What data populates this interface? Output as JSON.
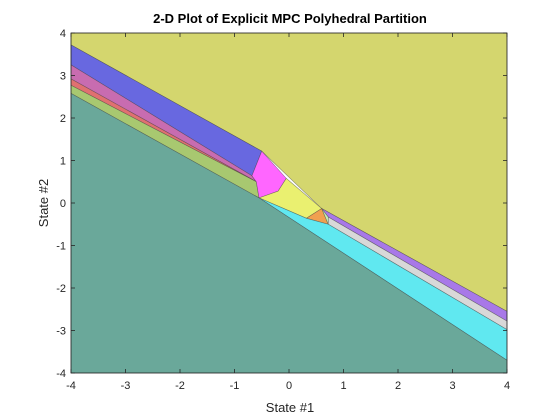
{
  "chart_data": {
    "type": "polyhedral-partition",
    "title": "2-D Plot of Explicit MPC Polyhedral Partition",
    "xlabel": "State #1",
    "ylabel": "State #2",
    "xlim": [
      -4,
      4
    ],
    "ylim": [
      -4,
      4
    ],
    "xticks": [
      -4,
      -3,
      -2,
      -1,
      0,
      1,
      2,
      3,
      4
    ],
    "yticks": [
      -4,
      -3,
      -2,
      -1,
      0,
      1,
      2,
      3,
      4
    ],
    "grid": false,
    "box": true,
    "regions": [
      {
        "color": "#d4d66e",
        "vertices": [
          [
            -4,
            3.72
          ],
          [
            -0.5,
            1.22
          ],
          [
            0.6,
            -0.13
          ],
          [
            4,
            -2.55
          ],
          [
            4,
            4
          ],
          [
            -4,
            4
          ]
        ]
      },
      {
        "color": "#6868e0",
        "vertices": [
          [
            -4,
            3.72
          ],
          [
            -0.5,
            1.22
          ],
          [
            -0.68,
            0.64
          ],
          [
            -4,
            3.25
          ]
        ]
      },
      {
        "color": "#c86cb0",
        "vertices": [
          [
            -4,
            3.25
          ],
          [
            -0.68,
            0.64
          ],
          [
            -0.6,
            0.5
          ],
          [
            -4,
            2.92
          ]
        ]
      },
      {
        "color": "#e07070",
        "vertices": [
          [
            -4,
            2.92
          ],
          [
            -0.6,
            0.5
          ],
          [
            -4,
            2.77
          ]
        ]
      },
      {
        "color": "#a8c870",
        "vertices": [
          [
            -4,
            2.77
          ],
          [
            -0.6,
            0.5
          ],
          [
            -0.55,
            0.12
          ],
          [
            -4,
            2.58
          ]
        ]
      },
      {
        "color": "#ff66ff",
        "vertices": [
          [
            -0.68,
            0.64
          ],
          [
            -0.5,
            1.22
          ],
          [
            -0.05,
            0.58
          ],
          [
            -0.2,
            0.28
          ],
          [
            -0.55,
            0.12
          ],
          [
            -0.6,
            0.5
          ]
        ]
      },
      {
        "color": "#eaf070",
        "vertices": [
          [
            -0.55,
            0.12
          ],
          [
            -0.2,
            0.28
          ],
          [
            -0.05,
            0.58
          ],
          [
            0.6,
            -0.13
          ],
          [
            0.32,
            -0.36
          ]
        ]
      },
      {
        "color": "#f0a050",
        "vertices": [
          [
            0.32,
            -0.36
          ],
          [
            0.6,
            -0.13
          ],
          [
            0.72,
            -0.5
          ]
        ]
      },
      {
        "color": "#a878e8",
        "vertices": [
          [
            0.6,
            -0.13
          ],
          [
            4,
            -2.55
          ],
          [
            4,
            -2.78
          ],
          [
            0.72,
            -0.33
          ]
        ]
      },
      {
        "color": "#d8d8d8",
        "vertices": [
          [
            0.72,
            -0.33
          ],
          [
            4,
            -2.78
          ],
          [
            4,
            -2.98
          ],
          [
            0.72,
            -0.5
          ]
        ]
      },
      {
        "color": "#c8f0b0",
        "vertices": [
          [
            0.6,
            -0.13
          ],
          [
            0.72,
            -0.33
          ],
          [
            0.72,
            -0.5
          ]
        ]
      },
      {
        "color": "#60e8f0",
        "vertices": [
          [
            -0.55,
            0.12
          ],
          [
            0.32,
            -0.36
          ],
          [
            0.72,
            -0.5
          ],
          [
            4,
            -2.98
          ],
          [
            4,
            -3.7
          ]
        ]
      },
      {
        "color": "#6aa89a",
        "vertices": [
          [
            -4,
            2.58
          ],
          [
            -0.55,
            0.12
          ],
          [
            4,
            -3.7
          ],
          [
            4,
            -4
          ],
          [
            -4,
            -4
          ]
        ]
      }
    ]
  }
}
